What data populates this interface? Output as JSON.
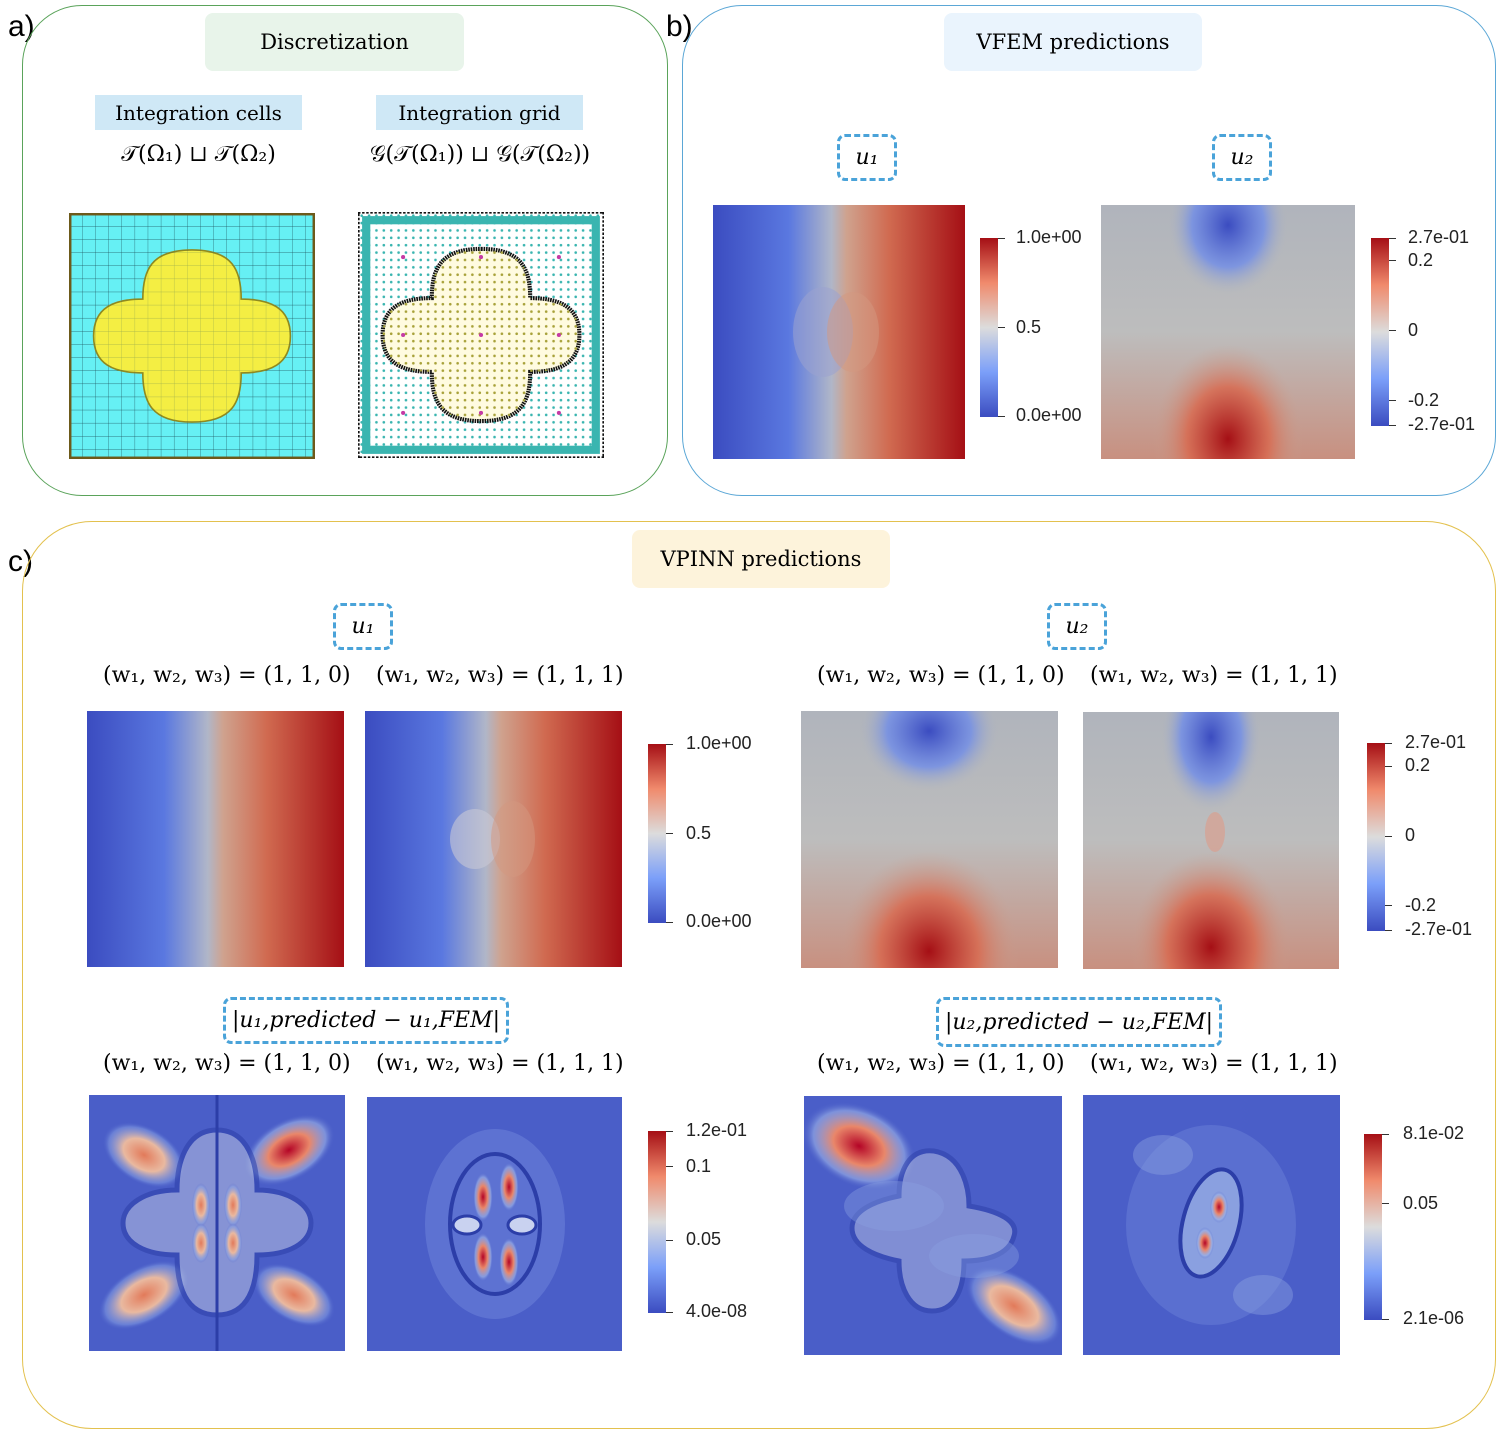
{
  "panel_a": {
    "letter": "a)",
    "title": "Discretization",
    "cells_tag": "Integration cells",
    "cells_formula": "𝒯(Ω₁) ⊔ 𝒯(Ω₂)",
    "grid_tag": "Integration grid",
    "grid_formula": "𝒢(𝒯(Ω₁)) ⊔ 𝒢(𝒯(Ω₂))"
  },
  "panel_b": {
    "letter": "b)",
    "title": "VFEM predictions",
    "u1_label": "u₁",
    "u2_label": "u₂",
    "u1_colorbar": [
      "1.0e+00",
      "0.5",
      "0.0e+00"
    ],
    "u2_colorbar": [
      "2.7e-01",
      "0.2",
      "0",
      "-0.2",
      "-2.7e-01"
    ]
  },
  "panel_c": {
    "letter": "c)",
    "title": "VPINN predictions",
    "u1_label": "u₁",
    "u2_label": "u₂",
    "w110": "(w₁, w₂, w₃) = (1, 1, 0)",
    "w111": "(w₁, w₂, w₃) = (1, 1, 1)",
    "err1_label": "|u₁,predicted − u₁,FEM|",
    "err2_label": "|u₂,predicted − u₂,FEM|",
    "u1_colorbar": [
      "1.0e+00",
      "0.5",
      "0.0e+00"
    ],
    "u2_colorbar": [
      "2.7e-01",
      "0.2",
      "0",
      "-0.2",
      "-2.7e-01"
    ],
    "err1_colorbar": [
      "1.2e-01",
      "0.1",
      "0.05",
      "4.0e-08"
    ],
    "err2_colorbar": [
      "8.1e-02",
      "0.05",
      "2.1e-06"
    ]
  },
  "colors": {
    "frame_a": "#5aa35a",
    "frame_b": "#5ba7d6",
    "frame_c": "#e3c14e",
    "pill_a": "#e8f4ea",
    "pill_b": "#eaf4fd",
    "pill_c": "#fdf3db",
    "low": "#3b4cc0",
    "mid": "#c9c9c9",
    "high": "#b40426"
  }
}
